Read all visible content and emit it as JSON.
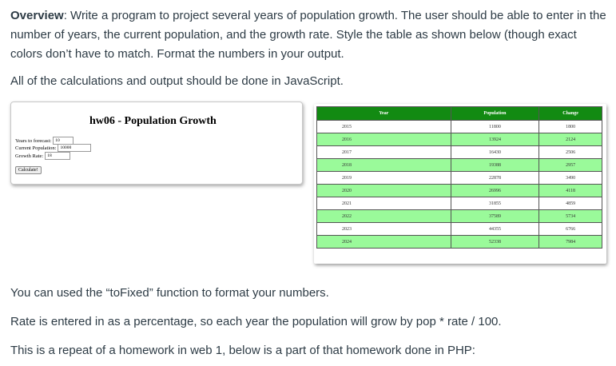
{
  "intro": {
    "label": "Overview",
    "text": ": Write a program to project several years of population growth.  The user should be able to enter in the number of years, the current population, and the growth rate.  Style the table as shown below (though exact colors don’t have to match. Format the numbers in your output.",
    "js_note": "All of the calculations and output should be done in JavaScript."
  },
  "app": {
    "title": "hw06 - Population Growth",
    "years_label": "Years to forecast:",
    "years_value": "10",
    "population_label": "Current Population:",
    "population_value": "10000",
    "rate_label": "Growth Rate:",
    "rate_value": "18",
    "calculate_label": "Calculate!"
  },
  "table": {
    "headers": [
      "Year",
      "Population",
      "Change"
    ],
    "rows": [
      [
        "2015",
        "11800",
        "1800"
      ],
      [
        "2016",
        "13924",
        "2124"
      ],
      [
        "2017",
        "16430",
        "2506"
      ],
      [
        "2018",
        "19388",
        "2957"
      ],
      [
        "2019",
        "22878",
        "3490"
      ],
      [
        "2020",
        "26996",
        "4118"
      ],
      [
        "2021",
        "31855",
        "4859"
      ],
      [
        "2022",
        "37589",
        "5734"
      ],
      [
        "2023",
        "44355",
        "6766"
      ],
      [
        "2024",
        "52338",
        "7984"
      ]
    ],
    "colors": {
      "header": "#128a12",
      "odd_row": "#9afa9a",
      "even_row": "#ffffff"
    }
  },
  "notes": {
    "tofixed": "You can used the “toFixed” function to format your numbers.",
    "rate": "Rate is entered in as a percentage, so each year the population will grow by pop * rate / 100.",
    "php": "This is a repeat of a homework in web 1, below is a part of that homework done in PHP:"
  }
}
